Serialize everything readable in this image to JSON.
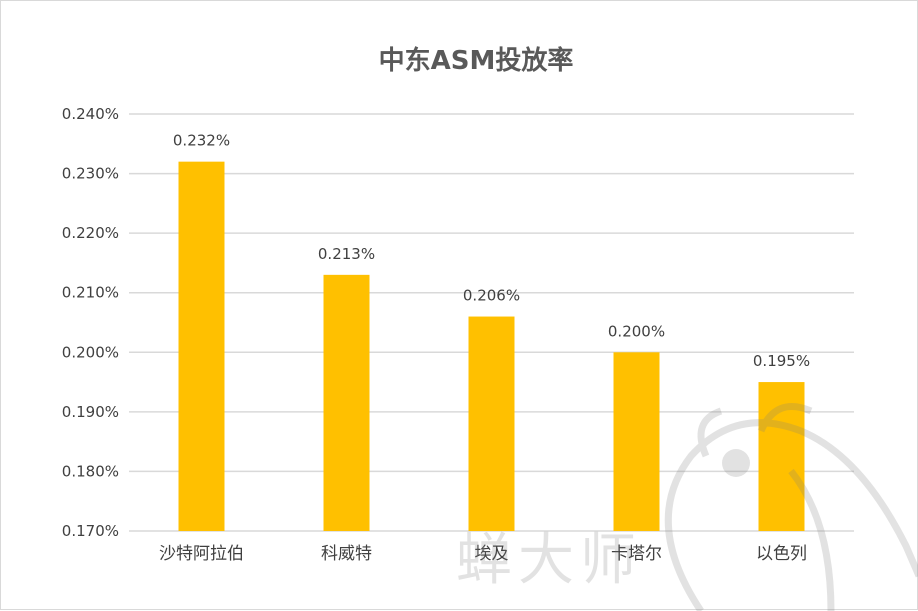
{
  "chart_data": {
    "type": "bar",
    "title": "中东ASM投放率",
    "categories": [
      "沙特阿拉伯",
      "科威特",
      "埃及",
      "卡塔尔",
      "以色列"
    ],
    "values": [
      0.232,
      0.213,
      0.206,
      0.2,
      0.195
    ],
    "value_labels": [
      "0.232%",
      "0.213%",
      "0.206%",
      "0.200%",
      "0.195%"
    ],
    "ylim": [
      0.17,
      0.24
    ],
    "yticks": [
      0.17,
      0.18,
      0.19,
      0.2,
      0.21,
      0.22,
      0.23,
      0.24
    ],
    "ytick_labels": [
      "0.170%",
      "0.180%",
      "0.190%",
      "0.200%",
      "0.210%",
      "0.220%",
      "0.230%",
      "0.240%"
    ],
    "xlabel": "",
    "ylabel": "",
    "grid": true,
    "legend": "none",
    "bar_color": "#FFC000",
    "grid_color": "#d9d9d9",
    "text_color": "#404040",
    "title_color": "#595959"
  },
  "watermark": {
    "text": "蝉大师",
    "icon": "cicada-logo-icon"
  }
}
